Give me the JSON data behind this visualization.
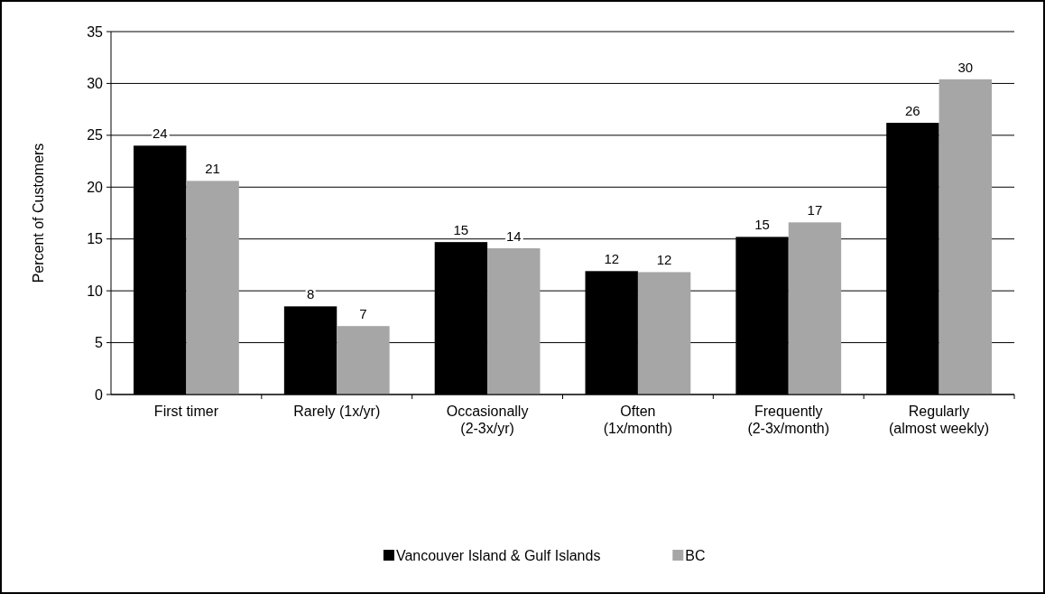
{
  "chart_data": {
    "type": "bar",
    "ylabel": "Percent of Customers",
    "categories": [
      "First timer",
      "Rarely  (1x/yr)",
      "Occasionally\n(2-3x/yr)",
      "Often\n(1x/month)",
      "Frequently\n(2-3x/month)",
      "Regularly\n(almost weekly)"
    ],
    "series": [
      {
        "name": "Vancouver Island & Gulf Islands",
        "color": "#000000",
        "values": [
          24,
          8.5,
          14.7,
          11.9,
          15.2,
          26.2
        ],
        "value_labels": [
          "24",
          "8",
          "15",
          "12",
          "15",
          "26"
        ]
      },
      {
        "name": "BC",
        "color": "#a6a6a6",
        "values": [
          20.6,
          6.6,
          14.1,
          11.8,
          16.6,
          30.4
        ],
        "value_labels": [
          "21",
          "7",
          "14",
          "12",
          "17",
          "30"
        ]
      }
    ],
    "ylim": [
      0,
      35
    ],
    "yticks": [
      0,
      5,
      10,
      15,
      20,
      25,
      30,
      35
    ],
    "grid": "y",
    "legend": "bottom"
  }
}
